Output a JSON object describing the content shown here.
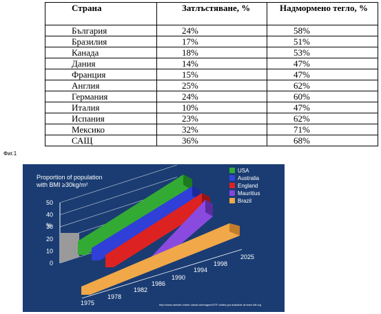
{
  "table": {
    "headers": [
      "Страна",
      "Затлъстяване, %",
      "Надмормено тегло, %"
    ],
    "rows": [
      [
        "България",
        "24%",
        "58%"
      ],
      [
        "Бразилия",
        "17%",
        "51%"
      ],
      [
        "Канада",
        "18%",
        "53%"
      ],
      [
        "Дания",
        "14%",
        "47%"
      ],
      [
        "Франция",
        "15%",
        "47%"
      ],
      [
        "Англия",
        "25%",
        "62%"
      ],
      [
        "Германия",
        "24%",
        "60%"
      ],
      [
        "Италия",
        "10%",
        "47%"
      ],
      [
        "Испания",
        "23%",
        "62%"
      ],
      [
        "Мексико",
        "32%",
        "71%"
      ],
      [
        "САЩ",
        "36%",
        "68%"
      ]
    ]
  },
  "caption": "Фиг.1",
  "chart_data": {
    "type": "area",
    "title": "Proportion of population",
    "subtitle": "with BMI ≥30kg/m²",
    "ylabel": "%",
    "ylim": [
      0,
      50
    ],
    "yticks": [
      "50",
      "40",
      "30",
      "20",
      "10",
      "0"
    ],
    "xticks": [
      "1975",
      "1978",
      "1982",
      "1986",
      "1990",
      "1994",
      "1998",
      "2025"
    ],
    "legend_position": "top-right",
    "series": [
      {
        "name": "USA",
        "color": "#33aa33"
      },
      {
        "name": "Australia",
        "color": "#3344dd"
      },
      {
        "name": "England",
        "color": "#dd2222"
      },
      {
        "name": "Mauritius",
        "color": "#8844dd"
      },
      {
        "name": "Brazil",
        "color": "#f0a848"
      }
    ],
    "source": "http://www.obesite.chaire.ulaval.ca/images/IOTF-slides.ppt available at www.iotf.org"
  }
}
